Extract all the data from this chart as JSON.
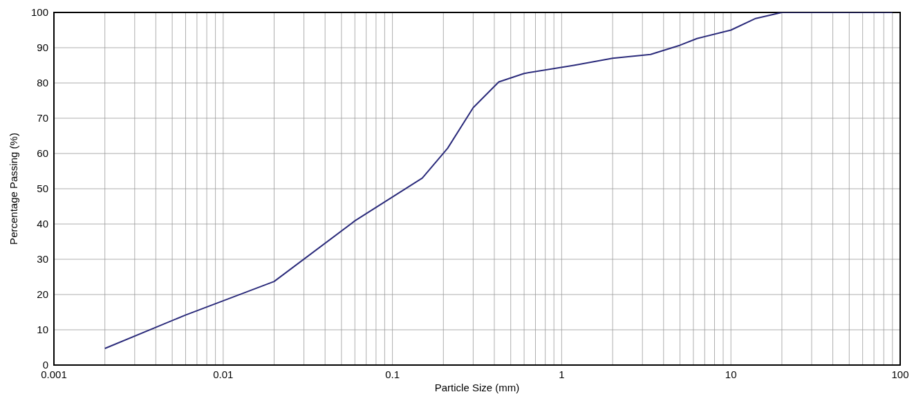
{
  "chart_data": {
    "type": "line",
    "xlabel": "Particle Size (mm)",
    "ylabel": "Percentage Passing (%)",
    "x": [
      0.002,
      0.006,
      0.02,
      0.06,
      0.15,
      0.212,
      0.3,
      0.425,
      0.6,
      1.18,
      2,
      3.35,
      5,
      6.3,
      10,
      14,
      20,
      90
    ],
    "series": [
      {
        "color": "#2b2b7b",
        "values": [
          4.7,
          14.2,
          23.7,
          40.9,
          53,
          61.5,
          73,
          80.3,
          82.7,
          85,
          87,
          88.1,
          90.7,
          92.6,
          95,
          98.3,
          100,
          100
        ]
      }
    ],
    "log": "x",
    "xlim": [
      0.001,
      100
    ],
    "xticks": [
      {
        "value": 0.001,
        "label": "0.001"
      },
      {
        "value": 0.002,
        "label": null
      },
      {
        "value": 0.003,
        "label": null
      },
      {
        "value": 0.004,
        "label": null
      },
      {
        "value": 0.005,
        "label": null
      },
      {
        "value": 0.006,
        "label": null
      },
      {
        "value": 0.007,
        "label": null
      },
      {
        "value": 0.008,
        "label": null
      },
      {
        "value": 0.009,
        "label": null
      },
      {
        "value": 0.01,
        "label": "0.01"
      },
      {
        "value": 0.02,
        "label": null
      },
      {
        "value": 0.03,
        "label": null
      },
      {
        "value": 0.04,
        "label": null
      },
      {
        "value": 0.05,
        "label": null
      },
      {
        "value": 0.06,
        "label": null
      },
      {
        "value": 0.07,
        "label": null
      },
      {
        "value": 0.08,
        "label": null
      },
      {
        "value": 0.09,
        "label": null
      },
      {
        "value": 0.1,
        "label": "0.1"
      },
      {
        "value": 0.2,
        "label": null
      },
      {
        "value": 0.3,
        "label": null
      },
      {
        "value": 0.4,
        "label": null
      },
      {
        "value": 0.5,
        "label": null
      },
      {
        "value": 0.6,
        "label": null
      },
      {
        "value": 0.7,
        "label": null
      },
      {
        "value": 0.8,
        "label": null
      },
      {
        "value": 0.9,
        "label": null
      },
      {
        "value": 1,
        "label": "1"
      },
      {
        "value": 2,
        "label": null
      },
      {
        "value": 3,
        "label": null
      },
      {
        "value": 4,
        "label": null
      },
      {
        "value": 5,
        "label": null
      },
      {
        "value": 6,
        "label": null
      },
      {
        "value": 7,
        "label": null
      },
      {
        "value": 8,
        "label": null
      },
      {
        "value": 9,
        "label": null
      },
      {
        "value": 10,
        "label": "10"
      },
      {
        "value": 20,
        "label": null
      },
      {
        "value": 30,
        "label": null
      },
      {
        "value": 40,
        "label": null
      },
      {
        "value": 50,
        "label": null
      },
      {
        "value": 60,
        "label": null
      },
      {
        "value": 70,
        "label": null
      },
      {
        "value": 80,
        "label": null
      },
      {
        "value": 90,
        "label": null
      },
      {
        "value": 100,
        "label": "100"
      }
    ],
    "ylim": [
      0,
      100
    ],
    "yticks": [
      0,
      10,
      20,
      30,
      40,
      50,
      60,
      70,
      80,
      90,
      100
    ],
    "grid": true,
    "marker": "none",
    "line_style": "solid"
  }
}
